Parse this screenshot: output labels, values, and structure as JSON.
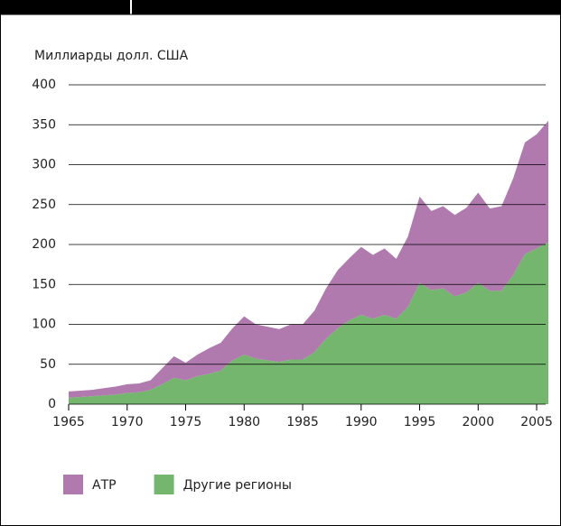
{
  "chart_data": {
    "type": "stacked-area",
    "y_label": "Миллиарды долл. США",
    "x": [
      1965,
      1966,
      1967,
      1968,
      1969,
      1970,
      1971,
      1972,
      1973,
      1974,
      1975,
      1976,
      1977,
      1978,
      1979,
      1980,
      1981,
      1982,
      1983,
      1984,
      1985,
      1986,
      1987,
      1988,
      1989,
      1990,
      1991,
      1992,
      1993,
      1994,
      1995,
      1996,
      1997,
      1998,
      1999,
      2000,
      2001,
      2002,
      2003,
      2004,
      2005,
      2006
    ],
    "series": [
      {
        "name": "Другие регионы",
        "color": "#74b66e",
        "values": [
          8,
          9,
          10,
          11,
          12,
          14,
          15,
          18,
          25,
          33,
          30,
          35,
          38,
          42,
          55,
          62,
          57,
          55,
          53,
          56,
          56,
          65,
          82,
          95,
          105,
          112,
          107,
          112,
          107,
          122,
          152,
          143,
          145,
          135,
          140,
          152,
          142,
          142,
          162,
          188,
          195,
          203
        ]
      },
      {
        "name": "АТР",
        "color": "#b07aaf",
        "values": [
          8,
          8,
          8,
          9,
          10,
          11,
          11,
          12,
          20,
          27,
          22,
          27,
          32,
          35,
          40,
          48,
          43,
          42,
          41,
          44,
          44,
          52,
          63,
          73,
          78,
          85,
          80,
          83,
          75,
          88,
          108,
          99,
          103,
          102,
          106,
          113,
          103,
          106,
          121,
          140,
          143,
          152
        ]
      }
    ],
    "xlim": [
      1965,
      2006
    ],
    "xticks": [
      1965,
      1970,
      1975,
      1980,
      1985,
      1990,
      1995,
      2000,
      2005
    ],
    "ylim": [
      0,
      400
    ],
    "yticks": [
      0,
      50,
      100,
      150,
      200,
      250,
      300,
      350,
      400
    ],
    "grid": true
  }
}
